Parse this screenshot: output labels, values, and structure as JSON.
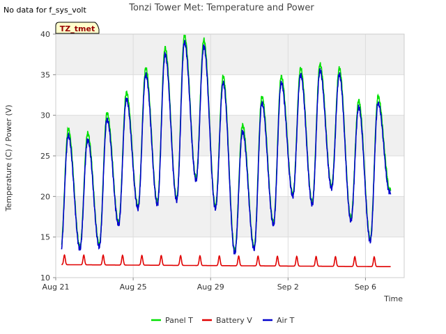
{
  "nodata_message": "No data for f_sys_volt",
  "chart_data": {
    "type": "line",
    "title": "Tonzi Tower Met: Temperature and Power",
    "xlabel": "Time",
    "ylabel": "Temperature (C) / Power (V)",
    "ylim": [
      10,
      40
    ],
    "y_ticks": [
      10,
      15,
      20,
      25,
      30,
      35,
      40
    ],
    "xlim_days": [
      0,
      18
    ],
    "x_ticks": [
      {
        "label": "Aug 21",
        "day": 0
      },
      {
        "label": "Aug 25",
        "day": 4
      },
      {
        "label": "Aug 29",
        "day": 8
      },
      {
        "label": "Sep 2",
        "day": 12
      },
      {
        "label": "Sep 6",
        "day": 16
      }
    ],
    "station_badge": "TZ_tmet",
    "legend_position": "bottom-center",
    "legend": [
      {
        "label": "Panel T",
        "color": "#00e000"
      },
      {
        "label": "Battery V",
        "color": "#e00000"
      },
      {
        "label": "Air T",
        "color": "#0000cc"
      }
    ],
    "daily_extremes": [
      {
        "day": 0,
        "min": 13.0,
        "max": 27.5
      },
      {
        "day": 1,
        "min": 13.5,
        "max": 27.0
      },
      {
        "day": 2,
        "min": 13.8,
        "max": 29.5
      },
      {
        "day": 3,
        "min": 16.5,
        "max": 32.0
      },
      {
        "day": 4,
        "min": 18.5,
        "max": 35.0
      },
      {
        "day": 5,
        "min": 19.0,
        "max": 37.5
      },
      {
        "day": 6,
        "min": 19.5,
        "max": 39.0
      },
      {
        "day": 7,
        "min": 22.0,
        "max": 38.5
      },
      {
        "day": 8,
        "min": 18.5,
        "max": 34.0
      },
      {
        "day": 9,
        "min": 13.0,
        "max": 28.0
      },
      {
        "day": 10,
        "min": 13.5,
        "max": 31.5
      },
      {
        "day": 11,
        "min": 16.5,
        "max": 34.0
      },
      {
        "day": 12,
        "min": 20.0,
        "max": 35.0
      },
      {
        "day": 13,
        "min": 19.0,
        "max": 35.5
      },
      {
        "day": 14,
        "min": 21.0,
        "max": 35.0
      },
      {
        "day": 15,
        "min": 17.0,
        "max": 31.0
      },
      {
        "day": 16,
        "min": 14.5,
        "max": 31.5
      },
      {
        "day": 17,
        "min": 20.5,
        "max": 20.5
      }
    ],
    "series": [
      {
        "name": "Panel T",
        "offset_at_max": 0.8,
        "offset_at_min": 0.3
      },
      {
        "name": "Battery V",
        "baseline": 11.6,
        "daily_peak": 12.8
      },
      {
        "name": "Air T",
        "offset_at_max": 0,
        "offset_at_min": 0
      }
    ],
    "series_end_day": 17.3
  }
}
